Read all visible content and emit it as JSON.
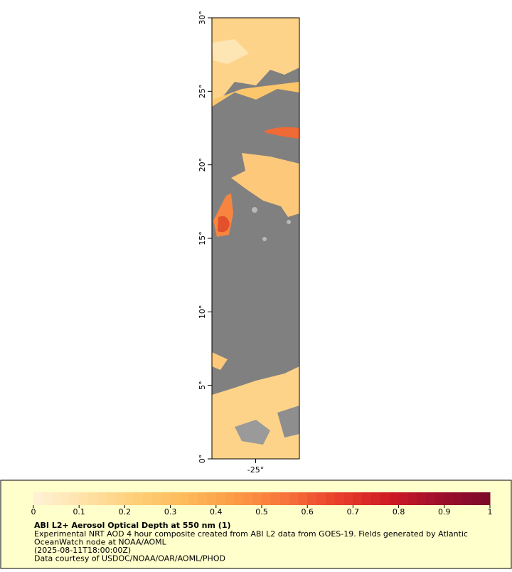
{
  "map": {
    "ylim": [
      0,
      30
    ],
    "xlim": [
      -28,
      -22
    ],
    "yticks": [
      {
        "value": 0,
        "label": "0°"
      },
      {
        "value": 5,
        "label": "5°"
      },
      {
        "value": 10,
        "label": "10°"
      },
      {
        "value": 15,
        "label": "15°"
      },
      {
        "value": 20,
        "label": "20°"
      },
      {
        "value": 25,
        "label": "25°"
      },
      {
        "value": 30,
        "label": "30°"
      }
    ],
    "xticks": [
      {
        "value": -25,
        "label": "-25°"
      }
    ]
  },
  "colorbar": {
    "range": [
      0,
      1
    ],
    "ticks": [
      0,
      0.1,
      0.2,
      0.3,
      0.4,
      0.5,
      0.6,
      0.7,
      0.8,
      0.9,
      1
    ],
    "colors": [
      "#fff3d6",
      "#ffe2a8",
      "#fecf78",
      "#fdba5a",
      "#fc9a44",
      "#f8723a",
      "#e8402b",
      "#cf1a24",
      "#9e0f2c",
      "#7a0a28"
    ]
  },
  "caption": {
    "title": "ABI L2+ Aerosol Optical Depth at 550 nm (1)",
    "lines": [
      "Experimental NRT AOD 4 hour composite created from ABI L2 data from GOES-19. Fields generated by Atlantic",
      "OceanWatch node at NOAA/AOML",
      "(2025-08-11T18:00:00Z)",
      "Data courtesy of USDOC/NOAA/OAR/AOML/PHOD"
    ]
  }
}
